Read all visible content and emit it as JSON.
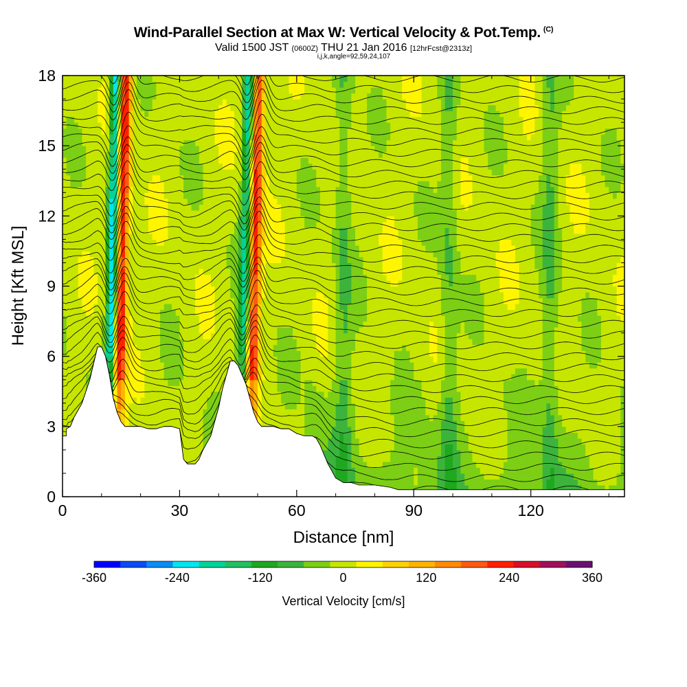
{
  "header": {
    "title": "Wind-Parallel Section at Max W: Vertical Velocity & Pot.Temp.",
    "copyright": "(C)",
    "valid_prefix": "Valid 1500 JST",
    "valid_utc": "(0600Z)",
    "valid_date": "THU 21 Jan 2016",
    "forecast": "[12hrFcst@2313z]",
    "indices": "i,j,k,angle=92,59,24,107"
  },
  "chart_data": {
    "type": "heatmap",
    "title": "Wind-Parallel Section at Max W: Vertical Velocity & Pot.Temp.",
    "xlabel": "Distance [nm]",
    "ylabel": "Height [Kft MSL]",
    "xlim": [
      0,
      144
    ],
    "ylim": [
      0,
      18
    ],
    "xticks": [
      "0",
      "30",
      "60",
      "90",
      "120"
    ],
    "xtick_values": [
      0,
      30,
      60,
      90,
      120
    ],
    "yticks": [
      "0",
      "3",
      "6",
      "9",
      "12",
      "15",
      "18"
    ],
    "ytick_values": [
      0,
      3,
      6,
      9,
      12,
      15,
      18
    ],
    "colorbar": {
      "title": "Vertical Velocity [cm/s]",
      "range": [
        -360,
        360
      ],
      "step": 40,
      "tick_labels": [
        "-360",
        "-240",
        "-120",
        "0",
        "120",
        "240",
        "360"
      ],
      "tick_values": [
        -360,
        -240,
        -120,
        0,
        120,
        240,
        360
      ],
      "colors": [
        "#0000ff",
        "#0a4cf5",
        "#0a8cf5",
        "#00e6f0",
        "#00d49a",
        "#22c060",
        "#1fa81f",
        "#3cb43c",
        "#7ccf14",
        "#c6e600",
        "#fff500",
        "#ffd200",
        "#ffb400",
        "#ff8c00",
        "#ff5a14",
        "#ff2000",
        "#d8102a",
        "#a0105a",
        "#6a1070"
      ]
    },
    "terrain_profile": {
      "distance": [
        0,
        1,
        1,
        2,
        3,
        4,
        5,
        6,
        7,
        8,
        9,
        10,
        11,
        12,
        13,
        14,
        15,
        16,
        17,
        18,
        20,
        22,
        24,
        26,
        28,
        30,
        31,
        32,
        33,
        34,
        35,
        36,
        37,
        38,
        39,
        40,
        41,
        42,
        43,
        44,
        45,
        46,
        47,
        48,
        49,
        50,
        51,
        52,
        54,
        56,
        58,
        60,
        62,
        64,
        65,
        66,
        67,
        68,
        69,
        70,
        71,
        72,
        73,
        74,
        76,
        80,
        84,
        86,
        87,
        90,
        100,
        110,
        120,
        130,
        144
      ],
      "height_kft": [
        2.6,
        2.6,
        2.9,
        3.0,
        3.4,
        3.7,
        4.0,
        4.5,
        5.0,
        5.7,
        6.4,
        6.4,
        6.0,
        5.2,
        4.2,
        3.6,
        3.2,
        3.0,
        3.0,
        3.0,
        3.0,
        2.9,
        2.9,
        3.0,
        3.0,
        2.9,
        1.6,
        1.4,
        1.4,
        1.4,
        1.6,
        2.0,
        2.3,
        2.6,
        3.2,
        3.8,
        4.6,
        5.2,
        5.8,
        5.8,
        5.6,
        5.2,
        4.8,
        4.2,
        3.6,
        3.2,
        3.0,
        3.0,
        3.0,
        2.9,
        2.9,
        2.7,
        2.6,
        2.6,
        2.5,
        2.2,
        1.8,
        1.4,
        1.1,
        0.8,
        0.7,
        0.6,
        0.6,
        0.6,
        0.5,
        0.5,
        0.4,
        0.3,
        0.3,
        0.3,
        0.3,
        0.3,
        0.3,
        0.3,
        0.3
      ]
    },
    "updrafts": [
      {
        "center_nm": 14.0,
        "tilt_nm_per_kft": 0.12,
        "max_cms": 260
      },
      {
        "center_nm": 48.0,
        "tilt_nm_per_kft": 0.13,
        "max_cms": 240
      }
    ],
    "downdrafts": [
      {
        "center_nm": 11.5,
        "tilt_nm_per_kft": 0.12,
        "min_cms": -260
      },
      {
        "center_nm": 45.5,
        "tilt_nm_per_kft": 0.13,
        "min_cms": -200
      },
      {
        "center_nm": 72.0,
        "tilt_nm_per_kft": 0.0,
        "min_cms": -60
      },
      {
        "center_nm": 99.0,
        "tilt_nm_per_kft": 0.0,
        "min_cms": -60
      },
      {
        "center_nm": 125.0,
        "tilt_nm_per_kft": 0.0,
        "min_cms": -60
      }
    ],
    "isentropes": {
      "count": 40,
      "base_kft": 0.8,
      "spacing_kft": 0.45
    }
  }
}
